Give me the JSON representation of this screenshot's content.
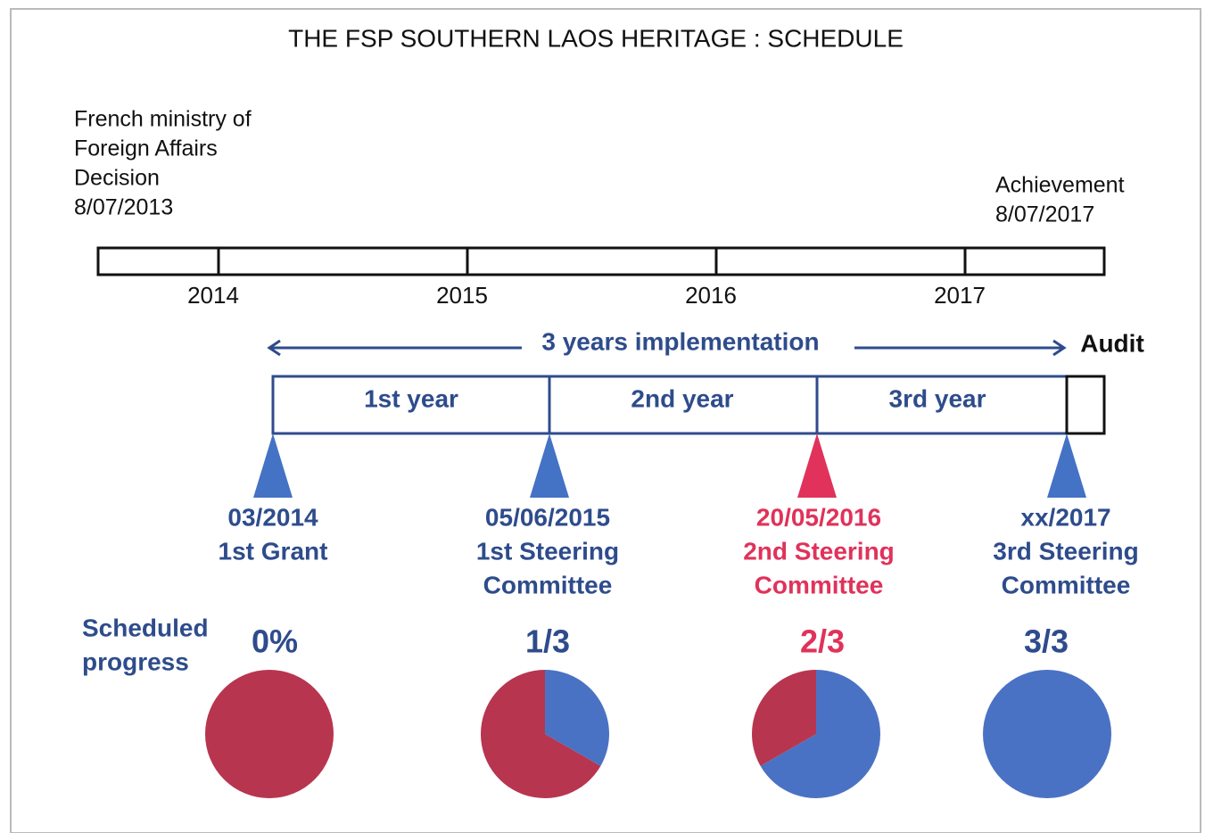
{
  "title": "THE FSP SOUTHERN LAOS HERITAGE : SCHEDULE",
  "start_note": [
    "French ministry of",
    "Foreign Affairs",
    "Decision",
    "8/07/2013"
  ],
  "end_note": [
    "Achievement",
    "8/07/2017"
  ],
  "years": [
    "2014",
    "2015",
    "2016",
    "2017"
  ],
  "implementation_label": "3 years implementation",
  "audit_label": "Audit",
  "phases": [
    "1st year",
    "2nd year",
    "3rd year"
  ],
  "progress_caption": [
    "Scheduled",
    "progress"
  ],
  "milestones": [
    {
      "lines": [
        "03/2014",
        "1st Grant"
      ],
      "progress_label": "0%",
      "progress": 0,
      "highlight": false
    },
    {
      "lines": [
        "05/06/2015",
        "1st Steering",
        "Committee"
      ],
      "progress_label": "1/3",
      "progress": 0.333,
      "highlight": false
    },
    {
      "lines": [
        "20/05/2016",
        "2nd Steering",
        "Committee"
      ],
      "progress_label": "2/3",
      "progress": 0.667,
      "highlight": true
    },
    {
      "lines": [
        "xx/2017",
        "3rd Steering",
        "Committee"
      ],
      "progress_label": "3/3",
      "progress": 1,
      "highlight": false
    }
  ]
}
